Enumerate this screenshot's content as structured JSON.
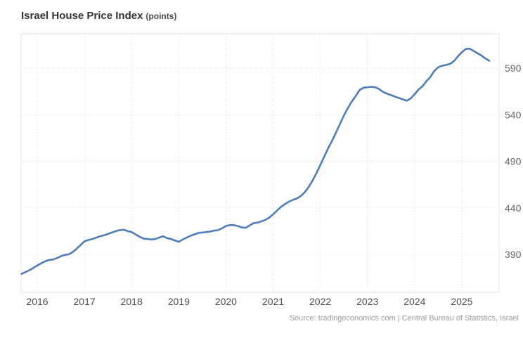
{
  "title": "Israel House Price Index",
  "title_suffix": "(points)",
  "source": "Source: tradingeconomics.com | Central Bureau of Statistics, Israel",
  "chart_data": {
    "type": "line",
    "title": "Israel House Price Index",
    "ylabel": "points",
    "xlabel": "",
    "legend_position": "none",
    "grid": "dotted",
    "y_axis_side": "right",
    "line_color": "#4e7dba",
    "frequency": "monthly",
    "start_period": "2015-09",
    "end_period": "2025-08",
    "x_tick_labels": [
      "2016",
      "2017",
      "2018",
      "2019",
      "2020",
      "2021",
      "2022",
      "2023",
      "2024",
      "2025"
    ],
    "y_tick_values": [
      590,
      540,
      490,
      440,
      390
    ],
    "ylim": [
      348,
      628
    ],
    "values": [
      369,
      371,
      373,
      375.5,
      378,
      380.5,
      382.5,
      384,
      384.5,
      386,
      388,
      389.5,
      390,
      392.5,
      396,
      400,
      404,
      405.5,
      406.5,
      408,
      409.5,
      410.5,
      412,
      413.5,
      415,
      416,
      416.5,
      415,
      414,
      411.5,
      409,
      407,
      406.5,
      406,
      406.5,
      408,
      409.5,
      407.5,
      406.5,
      405,
      403.5,
      406,
      408,
      410,
      411.5,
      413,
      413.5,
      414,
      414.5,
      415.5,
      416,
      418,
      420.5,
      421.5,
      421.5,
      420.5,
      419,
      418.5,
      421,
      423.5,
      424,
      425.5,
      427,
      429.5,
      433,
      437,
      441,
      444,
      446.5,
      448.5,
      450,
      452.5,
      456.5,
      462,
      469,
      477,
      486,
      495,
      504,
      512,
      521,
      530,
      539,
      547,
      554,
      560,
      566.5,
      569,
      569.5,
      570,
      569.5,
      567.5,
      564.5,
      562.5,
      561,
      559.5,
      558,
      556.5,
      555,
      557.5,
      562,
      567,
      570.5,
      576,
      580.5,
      587,
      591,
      592.5,
      593.5,
      594.5,
      597.5,
      602.5,
      607,
      610.5,
      611,
      608.5,
      606,
      603.5,
      600.5,
      598
    ]
  }
}
